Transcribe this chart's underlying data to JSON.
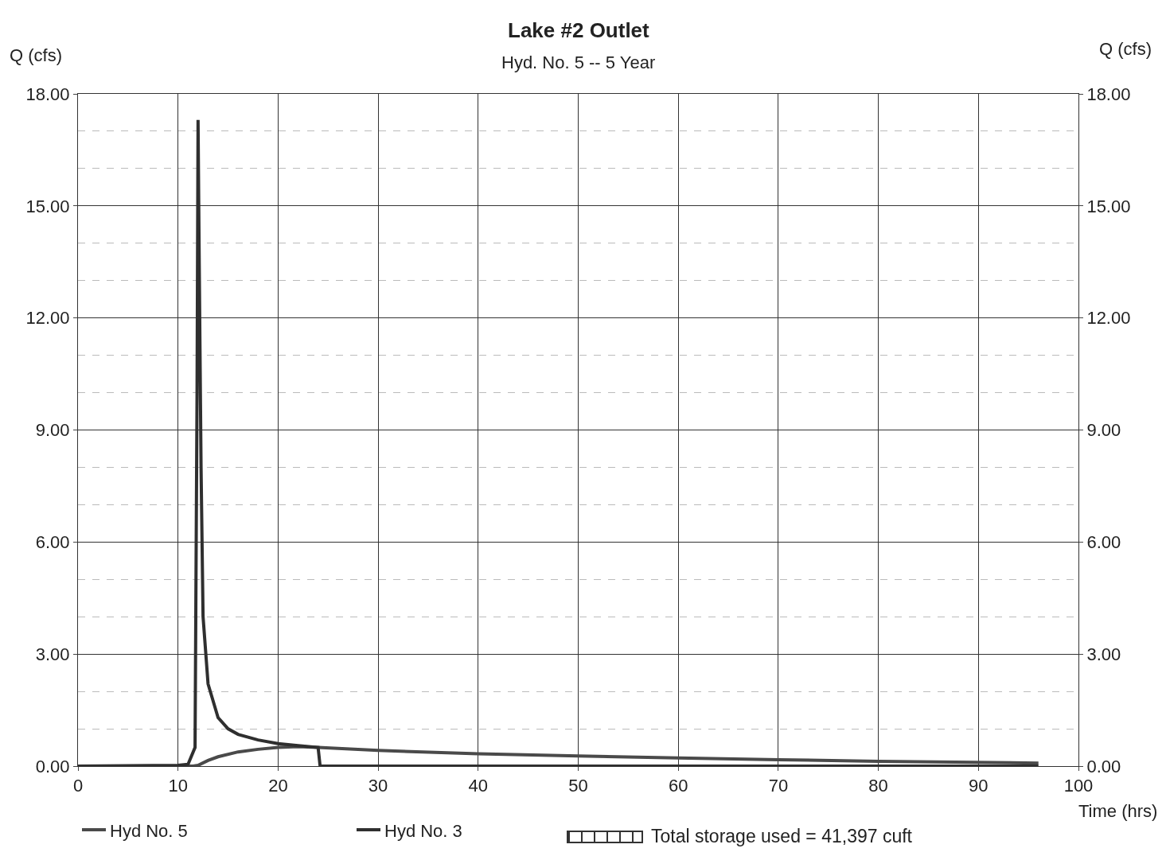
{
  "chart_data": {
    "type": "line",
    "title": "Lake #2 Outlet",
    "subtitle": "Hyd. No. 5 -- 5 Year",
    "xlabel": "Time (hrs)",
    "ylabel": "Q (cfs)",
    "y2label": "Q (cfs)",
    "series": [
      {
        "name": "Hyd No. 5",
        "color": "#4a4a4a",
        "x": [
          0,
          11.5,
          12,
          13,
          14,
          16,
          18,
          20,
          22,
          24,
          30,
          40,
          50,
          60,
          70,
          80,
          96
        ],
        "values": [
          0,
          0,
          0.02,
          0.15,
          0.25,
          0.38,
          0.45,
          0.5,
          0.52,
          0.5,
          0.42,
          0.33,
          0.27,
          0.22,
          0.17,
          0.13,
          0.08
        ]
      },
      {
        "name": "Hyd No. 3",
        "color": "#2f2f2f",
        "x": [
          0,
          10,
          11,
          11.7,
          11.9,
          12,
          12.1,
          12.3,
          12.5,
          13,
          14,
          15,
          16,
          18,
          20,
          22,
          24,
          24.2,
          96
        ],
        "values": [
          0,
          0.02,
          0.05,
          0.5,
          10,
          17.3,
          14,
          8,
          4,
          2.2,
          1.3,
          1,
          0.85,
          0.7,
          0.6,
          0.55,
          0.5,
          0,
          0
        ]
      }
    ],
    "xlim": [
      0,
      100
    ],
    "xticks": [
      0,
      10,
      20,
      30,
      40,
      50,
      60,
      70,
      80,
      90,
      100
    ],
    "ylim": [
      0,
      18
    ],
    "yticks": [
      {
        "value": 0,
        "label": "0.00"
      },
      {
        "value": 3,
        "label": "3.00"
      },
      {
        "value": 6,
        "label": "6.00"
      },
      {
        "value": 9,
        "label": "9.00"
      },
      {
        "value": 12,
        "label": "12.00"
      },
      {
        "value": 15,
        "label": "15.00"
      },
      {
        "value": 18,
        "label": "18.00"
      }
    ],
    "y2lim": [
      0,
      18
    ],
    "y2ticks": [
      {
        "value": 0,
        "label": "0.00"
      },
      {
        "value": 3,
        "label": "3.00"
      },
      {
        "value": 6,
        "label": "6.00"
      },
      {
        "value": 9,
        "label": "9.00"
      },
      {
        "value": 12,
        "label": "12.00"
      },
      {
        "value": 15,
        "label": "15.00"
      },
      {
        "value": 18,
        "label": "18.00"
      }
    ],
    "annotations": [
      "Total storage used = 41,397 cuft"
    ],
    "grid": true,
    "legend": "bottom left",
    "line_style": "solid",
    "marker": "none"
  }
}
